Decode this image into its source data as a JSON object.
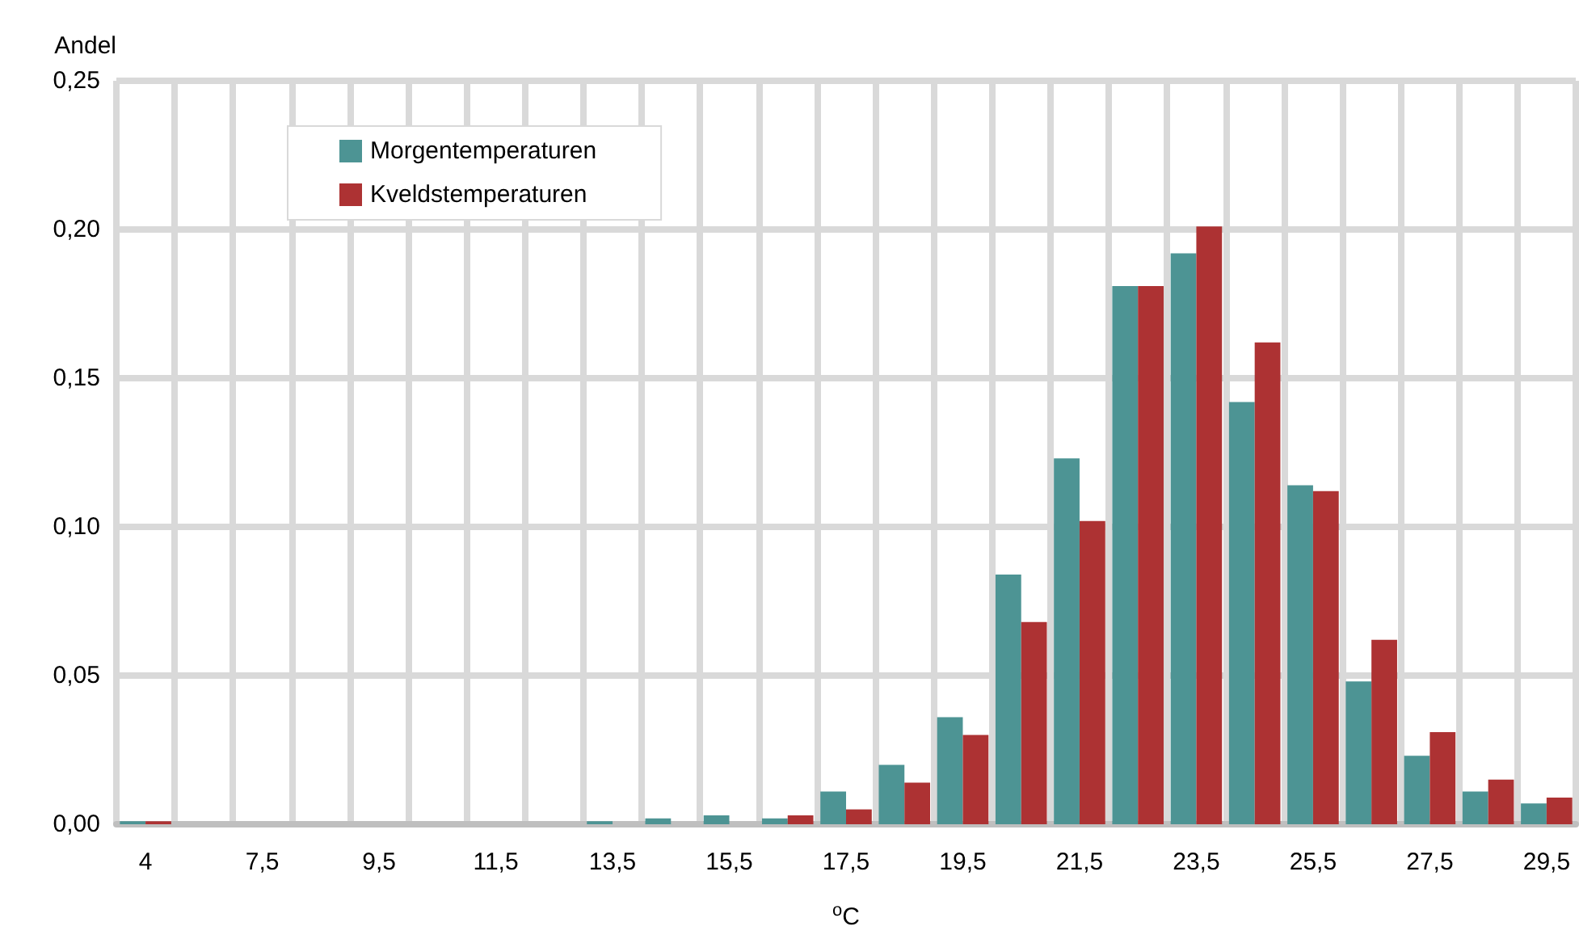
{
  "chart_data": {
    "type": "bar",
    "xlabel": "$^{o}$C",
    "ylabel": "Andel",
    "categories": [
      "4",
      null,
      "7,5",
      null,
      "9,5",
      null,
      "11,5",
      null,
      "13,5",
      null,
      "15,5",
      null,
      "17,5",
      null,
      "19,5",
      null,
      "21,5",
      null,
      "23,5",
      null,
      "25,5",
      null,
      "27,5",
      null,
      "29,5"
    ],
    "series": [
      {
        "name": "Morgentemperaturen",
        "color": "#4d9494",
        "values": [
          0.001,
          0,
          0,
          0,
          0,
          0,
          0,
          0,
          0.001,
          0.002,
          0.003,
          0.002,
          0.011,
          0.02,
          0.036,
          0.084,
          0.123,
          0.181,
          0.192,
          0.142,
          0.114,
          0.048,
          0.023,
          0.011,
          0.007
        ]
      },
      {
        "name": "Kveldstemperaturen",
        "color": "#ad3233",
        "values": [
          0.001,
          0,
          0,
          0,
          0,
          0,
          0,
          0,
          0,
          0,
          0,
          0.003,
          0.005,
          0.014,
          0.03,
          0.068,
          0.102,
          0.181,
          0.201,
          0.162,
          0.112,
          0.062,
          0.031,
          0.015,
          0.009
        ]
      }
    ],
    "ylim": [
      0,
      0.25
    ],
    "yticks": [
      {
        "value": 0,
        "label": "0,00"
      },
      {
        "value": 0.05,
        "label": "0,05"
      },
      {
        "value": 0.1,
        "label": "0,10"
      },
      {
        "value": 0.15,
        "label": "0,15"
      },
      {
        "value": 0.2,
        "label": "0,20"
      },
      {
        "value": 0.25,
        "label": "0,25"
      }
    ],
    "grid": true,
    "legend": "top left"
  }
}
